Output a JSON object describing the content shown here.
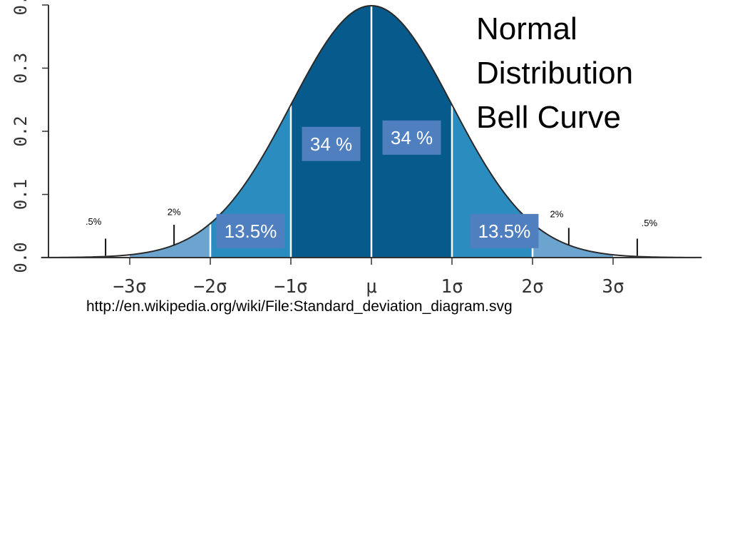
{
  "title": {
    "line1": "Normal",
    "line2": "Distribution",
    "line3": "Bell Curve"
  },
  "source": "http://en.wikipedia.org/wiki/File:Standard_deviation_diagram.svg",
  "colors": {
    "inner": "#075a8c",
    "middle": "#2b8cc0",
    "outer": "#6ba5cf",
    "label_box": "#4f7fbf",
    "axis": "#333333"
  },
  "chart_data": {
    "type": "area",
    "distribution": "normal",
    "mean": 0,
    "sd": 1,
    "xlim": [
      -4.1,
      4.1
    ],
    "ylim": [
      0,
      0.4
    ],
    "yticks": [
      {
        "value": 0.0,
        "label": "0.0"
      },
      {
        "value": 0.1,
        "label": "0.1"
      },
      {
        "value": 0.2,
        "label": "0.2"
      },
      {
        "value": 0.3,
        "label": "0.3"
      },
      {
        "value": 0.4,
        "label": "0."
      }
    ],
    "xticks": [
      {
        "value": -3,
        "label": "−3σ"
      },
      {
        "value": -2,
        "label": "−2σ"
      },
      {
        "value": -1,
        "label": "−1σ"
      },
      {
        "value": 0,
        "label": "μ"
      },
      {
        "value": 1,
        "label": "1σ"
      },
      {
        "value": 2,
        "label": "2σ"
      },
      {
        "value": 3,
        "label": "3σ"
      }
    ],
    "regions": [
      {
        "from": -3,
        "to": -2,
        "band": "outer"
      },
      {
        "from": -2,
        "to": -1,
        "band": "middle"
      },
      {
        "from": -1,
        "to": 0,
        "band": "inner"
      },
      {
        "from": 0,
        "to": 1,
        "band": "inner"
      },
      {
        "from": 1,
        "to": 2,
        "band": "middle"
      },
      {
        "from": 2,
        "to": 3,
        "band": "outer"
      }
    ],
    "region_labels": [
      {
        "text": "34 %",
        "x": -0.5,
        "y": 0.18,
        "boxed": true,
        "size": "large"
      },
      {
        "text": "34 %",
        "x": 0.5,
        "y": 0.19,
        "boxed": true,
        "size": "large"
      },
      {
        "text": "13.5%",
        "x": -1.5,
        "y": 0.042,
        "boxed": true,
        "size": "large"
      },
      {
        "text": "13.5%",
        "x": 1.65,
        "y": 0.042,
        "boxed": true,
        "size": "large"
      },
      {
        "text": "2%",
        "x": -2.45,
        "y": 0.067,
        "boxed": false,
        "size": "small"
      },
      {
        "text": "2%",
        "x": 2.3,
        "y": 0.064,
        "boxed": false,
        "size": "small"
      },
      {
        "text": ".5%",
        "x": -3.45,
        "y": 0.052,
        "boxed": false,
        "size": "small"
      },
      {
        "text": ".5%",
        "x": 3.45,
        "y": 0.05,
        "boxed": false,
        "size": "small"
      }
    ],
    "pointer_lines": [
      {
        "x": -3.3,
        "y0": 0.003,
        "y1": 0.03
      },
      {
        "x": -2.45,
        "y0": 0.02,
        "y1": 0.052
      },
      {
        "x": 2.45,
        "y0": 0.02,
        "y1": 0.047
      },
      {
        "x": 3.3,
        "y0": 0.003,
        "y1": 0.03
      }
    ]
  }
}
